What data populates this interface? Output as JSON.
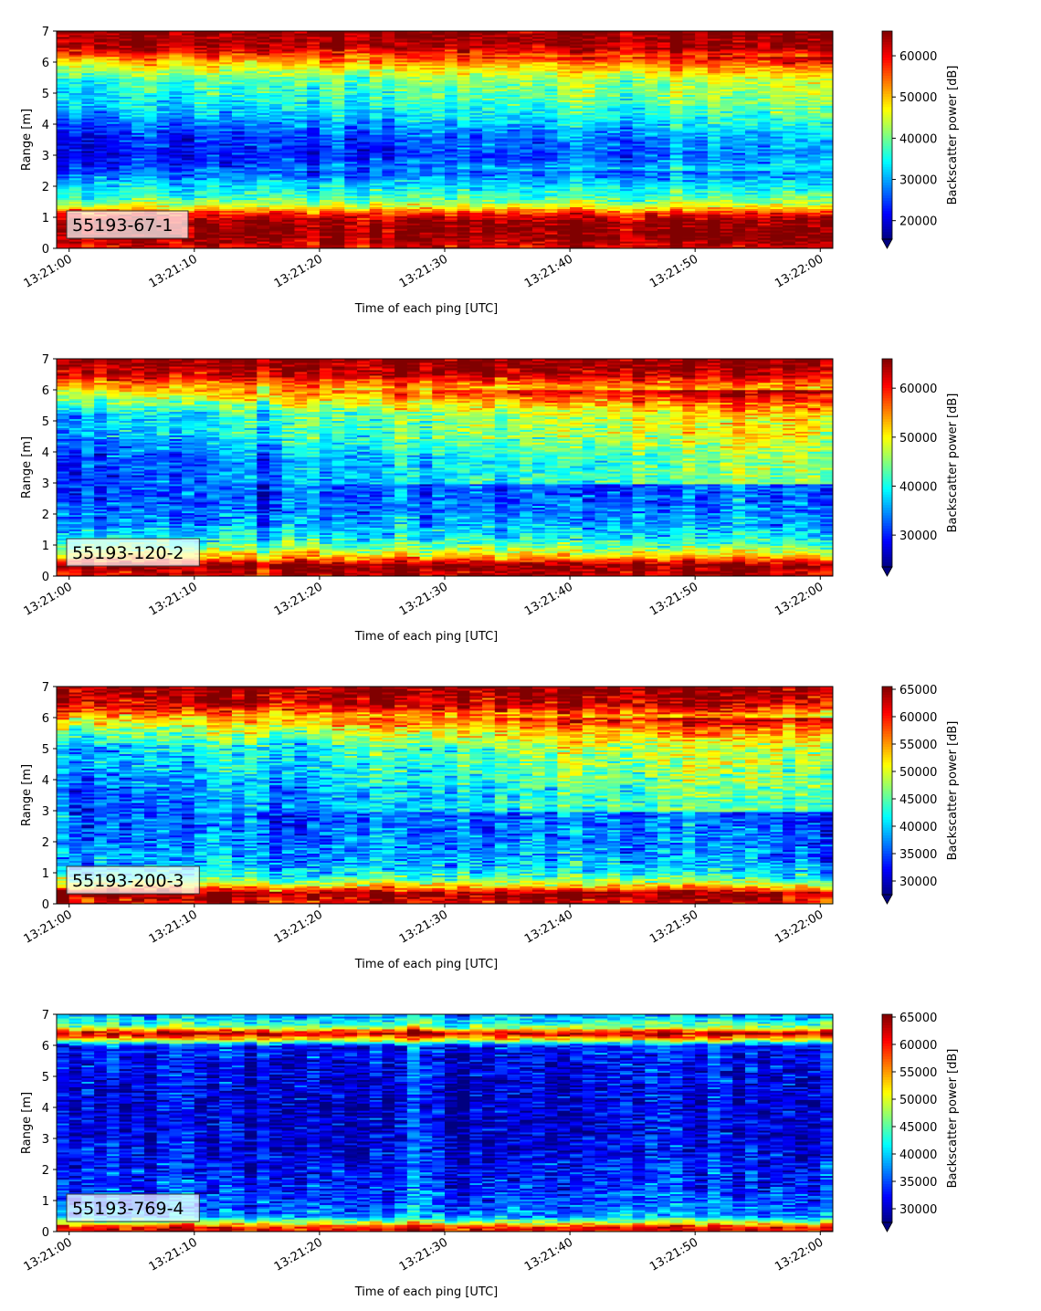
{
  "chart_data": [
    {
      "type": "heatmap",
      "panel_label": "55193-67-1",
      "xlabel": "Time of each ping [UTC]",
      "ylabel": "Range [m]",
      "xticks": [
        "13:21:00",
        "13:21:10",
        "13:21:20",
        "13:21:30",
        "13:21:40",
        "13:21:50",
        "13:22:00"
      ],
      "yticks": [
        0,
        1,
        2,
        3,
        4,
        5,
        6,
        7
      ],
      "ylim": [
        0,
        7
      ],
      "x_range_seconds": [
        -1,
        61
      ],
      "colorbar": {
        "label": "Backscatter power [dB]",
        "ticks": [
          20000,
          30000,
          40000,
          50000,
          60000
        ],
        "range": [
          15500,
          66000
        ],
        "extend": "min",
        "colormap": "jet"
      },
      "profile": [
        {
          "range_m": 0.1,
          "value": 62000
        },
        {
          "range_m": 0.4,
          "value": 66000
        },
        {
          "range_m": 0.9,
          "value": 65000
        },
        {
          "range_m": 1.15,
          "value": 58000
        },
        {
          "range_m": 1.35,
          "value": 47000
        },
        {
          "range_m": 1.6,
          "value": 39000
        },
        {
          "range_m": 2.0,
          "value": 34000
        },
        {
          "range_m": 2.5,
          "value": 27000
        },
        {
          "range_m": 3.0,
          "value": 22000
        },
        {
          "range_m": 3.6,
          "value": 24000
        },
        {
          "range_m": 4.2,
          "value": 30000
        },
        {
          "range_m": 4.8,
          "value": 35000
        },
        {
          "range_m": 5.4,
          "value": 38000
        },
        {
          "range_m": 5.9,
          "value": 47000
        },
        {
          "range_m": 6.2,
          "value": 56000
        },
        {
          "range_m": 6.5,
          "value": 64000
        },
        {
          "range_m": 7.0,
          "value": 66000
        }
      ],
      "trend": {
        "from_range_m": 2.5,
        "to_range_m": 6.2,
        "start_delta": -1000,
        "end_delta": 7000
      }
    },
    {
      "type": "heatmap",
      "panel_label": "55193-120-2",
      "xlabel": "Time of each ping [UTC]",
      "ylabel": "Range [m]",
      "xticks": [
        "13:21:00",
        "13:21:10",
        "13:21:20",
        "13:21:30",
        "13:21:40",
        "13:21:50",
        "13:22:00"
      ],
      "yticks": [
        0,
        1,
        2,
        3,
        4,
        5,
        6,
        7
      ],
      "ylim": [
        0,
        7
      ],
      "x_range_seconds": [
        -1,
        61
      ],
      "colorbar": {
        "label": "Backscatter power [dB]",
        "ticks": [
          30000,
          40000,
          50000,
          60000
        ],
        "range": [
          23500,
          66000
        ],
        "extend": "min",
        "colormap": "jet"
      },
      "profile": [
        {
          "range_m": 0.1,
          "value": 63000
        },
        {
          "range_m": 0.35,
          "value": 66000
        },
        {
          "range_m": 0.6,
          "value": 54000
        },
        {
          "range_m": 0.9,
          "value": 45000
        },
        {
          "range_m": 1.2,
          "value": 40000
        },
        {
          "range_m": 1.6,
          "value": 36000
        },
        {
          "range_m": 2.2,
          "value": 33000
        },
        {
          "range_m": 3.0,
          "value": 32000
        },
        {
          "range_m": 3.8,
          "value": 32000
        },
        {
          "range_m": 4.6,
          "value": 37000
        },
        {
          "range_m": 5.2,
          "value": 38000
        },
        {
          "range_m": 5.8,
          "value": 48000
        },
        {
          "range_m": 6.2,
          "value": 56000
        },
        {
          "range_m": 6.5,
          "value": 63000
        },
        {
          "range_m": 7.0,
          "value": 66000
        }
      ],
      "trend": {
        "from_range_m": 3.0,
        "to_range_m": 6.0,
        "start_delta": -1000,
        "end_delta": 14000
      }
    },
    {
      "type": "heatmap",
      "panel_label": "55193-200-3",
      "xlabel": "Time of each ping [UTC]",
      "ylabel": "Range [m]",
      "xticks": [
        "13:21:00",
        "13:21:10",
        "13:21:20",
        "13:21:30",
        "13:21:40",
        "13:21:50",
        "13:22:00"
      ],
      "yticks": [
        0,
        1,
        2,
        3,
        4,
        5,
        6,
        7
      ],
      "ylim": [
        0,
        7
      ],
      "x_range_seconds": [
        -1,
        61
      ],
      "colorbar": {
        "label": "Backscatter power [dB]",
        "ticks": [
          30000,
          35000,
          40000,
          45000,
          50000,
          55000,
          60000,
          65000
        ],
        "range": [
          27500,
          65500
        ],
        "extend": "min",
        "colormap": "jet"
      },
      "profile": [
        {
          "range_m": 0.1,
          "value": 62000
        },
        {
          "range_m": 0.35,
          "value": 65500
        },
        {
          "range_m": 0.6,
          "value": 52000
        },
        {
          "range_m": 0.9,
          "value": 43000
        },
        {
          "range_m": 1.3,
          "value": 39000
        },
        {
          "range_m": 2.0,
          "value": 37000
        },
        {
          "range_m": 2.8,
          "value": 36000
        },
        {
          "range_m": 3.6,
          "value": 36000
        },
        {
          "range_m": 4.4,
          "value": 39000
        },
        {
          "range_m": 5.0,
          "value": 40000
        },
        {
          "range_m": 5.6,
          "value": 47000
        },
        {
          "range_m": 6.1,
          "value": 55000
        },
        {
          "range_m": 6.4,
          "value": 63000
        },
        {
          "range_m": 7.0,
          "value": 65500
        }
      ],
      "trend": {
        "from_range_m": 3.0,
        "to_range_m": 6.0,
        "start_delta": -1000,
        "end_delta": 11000
      }
    },
    {
      "type": "heatmap",
      "panel_label": "55193-769-4",
      "xlabel": "Time of each ping [UTC]",
      "ylabel": "Range [m]",
      "xticks": [
        "13:21:00",
        "13:21:10",
        "13:21:20",
        "13:21:30",
        "13:21:40",
        "13:21:50",
        "13:22:00"
      ],
      "yticks": [
        0,
        1,
        2,
        3,
        4,
        5,
        6,
        7
      ],
      "ylim": [
        0,
        7
      ],
      "x_range_seconds": [
        -1,
        61
      ],
      "colorbar": {
        "label": "Backscatter power [dB]",
        "ticks": [
          30000,
          35000,
          40000,
          45000,
          50000,
          55000,
          60000,
          65000
        ],
        "range": [
          27500,
          65500
        ],
        "extend": "min",
        "colormap": "jet"
      },
      "profile": [
        {
          "range_m": 0.15,
          "value": 61000
        },
        {
          "range_m": 0.3,
          "value": 50000
        },
        {
          "range_m": 0.5,
          "value": 38000
        },
        {
          "range_m": 0.9,
          "value": 36000
        },
        {
          "range_m": 1.5,
          "value": 34000
        },
        {
          "range_m": 2.5,
          "value": 32000
        },
        {
          "range_m": 3.5,
          "value": 31000
        },
        {
          "range_m": 4.5,
          "value": 31000
        },
        {
          "range_m": 5.5,
          "value": 32000
        },
        {
          "range_m": 6.0,
          "value": 33500
        },
        {
          "range_m": 6.2,
          "value": 52000
        },
        {
          "range_m": 6.4,
          "value": 64000
        },
        {
          "range_m": 6.6,
          "value": 47000
        },
        {
          "range_m": 7.0,
          "value": 38000
        }
      ],
      "trend": {
        "from_range_m": 0,
        "to_range_m": 0,
        "start_delta": 0,
        "end_delta": 0
      }
    }
  ]
}
